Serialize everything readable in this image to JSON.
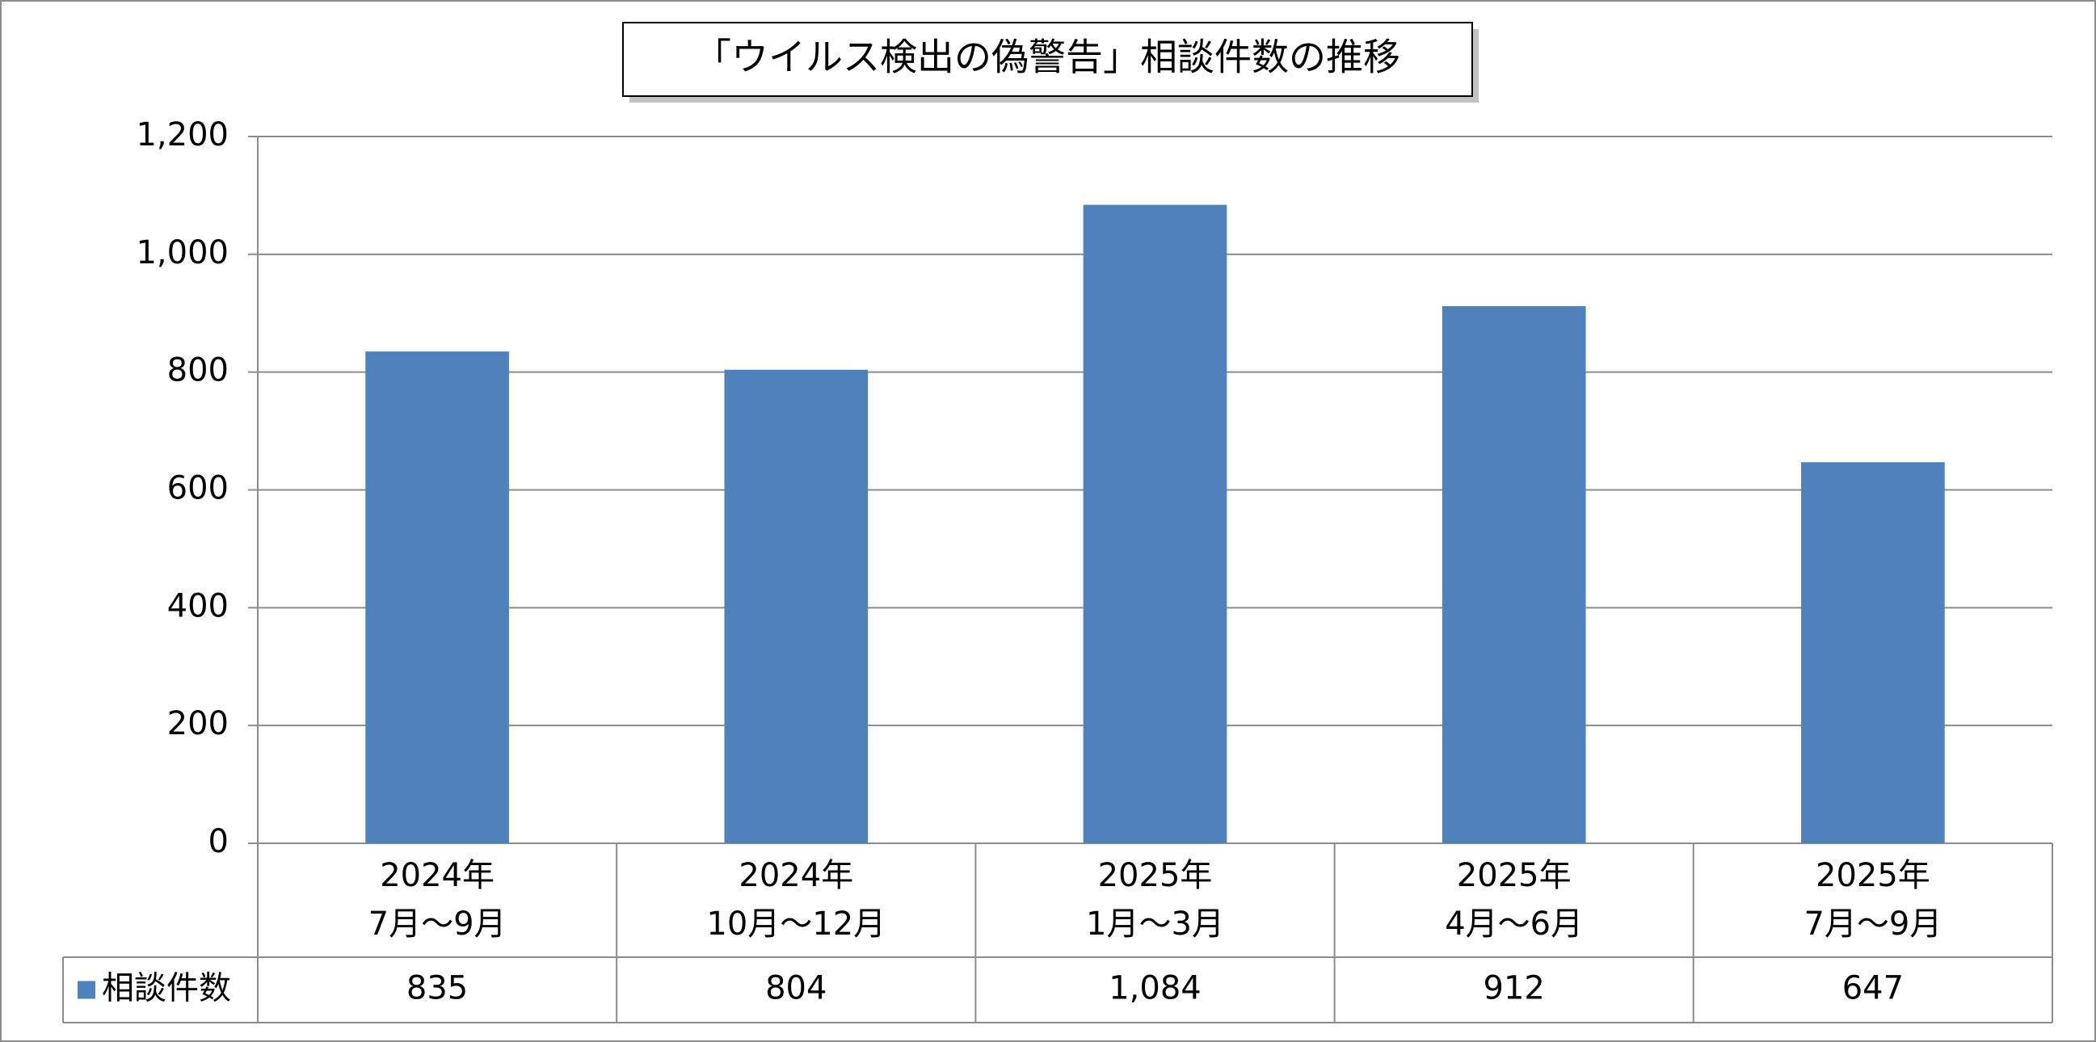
{
  "chart_data": {
    "type": "bar",
    "title": "「ウイルス検出の偽警告」相談件数の推移",
    "categories": [
      [
        "2024年",
        "7月～9月"
      ],
      [
        "2024年",
        "10月～12月"
      ],
      [
        "2025年",
        "1月～3月"
      ],
      [
        "2025年",
        "4月～6月"
      ],
      [
        "2025年",
        "7月～9月"
      ]
    ],
    "series": [
      {
        "name": "相談件数",
        "color": "#4f81bd",
        "values": [
          835,
          804,
          1084,
          912,
          647
        ],
        "value_labels": [
          "835",
          "804",
          "1,084",
          "912",
          "647"
        ]
      }
    ],
    "ylim": [
      0,
      1200
    ],
    "yticks": [
      0,
      200,
      400,
      600,
      800,
      {
        "value": 1000,
        "label": "1,000"
      },
      {
        "value": 1200,
        "label": "1,200"
      }
    ],
    "grid": true
  }
}
